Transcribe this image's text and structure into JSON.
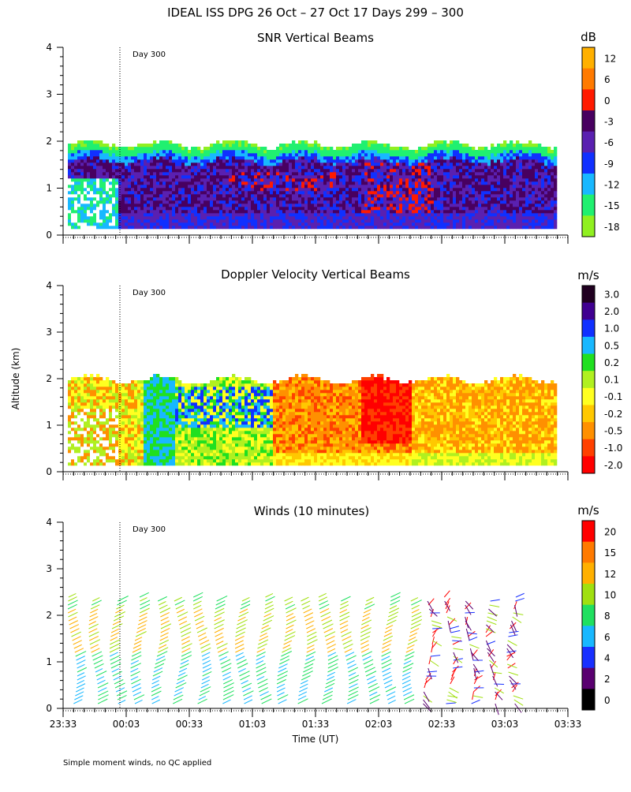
{
  "title": "IDEAL ISS DPG  26 Oct – 27 Oct 17 Days 299 – 300",
  "footnote": "Simple moment winds, no QC applied",
  "day_marker_label": "Day 300",
  "chart_data": {
    "type": "heatmap",
    "x_axis": {
      "label": "Time (UT)",
      "ticks": [
        "23:33",
        "00:03",
        "00:33",
        "01:03",
        "01:33",
        "02:03",
        "02:33",
        "03:03",
        "03:33"
      ],
      "day_boundary_time": "00:00"
    },
    "y_axis": {
      "label": "Altitude (km)",
      "ticks": [
        "0",
        "1",
        "2",
        "3",
        "4"
      ],
      "ylim": [
        0,
        4
      ]
    },
    "panels": [
      {
        "title": "SNR Vertical Beams",
        "type": "heatmap",
        "colorbar_unit": "dB",
        "colorbar_labels": [
          "12",
          "6",
          "0",
          "-3",
          "-6",
          "-9",
          "-12",
          "-15",
          "-18"
        ],
        "colorbar_colors": [
          "#ffb000",
          "#ff7a00",
          "#ff1a00",
          "#480060",
          "#5a20b0",
          "#1030ff",
          "#18b8ff",
          "#20f070",
          "#90f020"
        ],
        "data_top_km": 1.9
      },
      {
        "title": "Doppler Velocity Vertical Beams",
        "type": "heatmap",
        "colorbar_unit": "m/s",
        "colorbar_labels": [
          "3.0",
          "2.0",
          "1.0",
          "0.5",
          "0.2",
          "0.1",
          "-0.1",
          "-0.2",
          "-0.5",
          "-1.0",
          "-2.0"
        ],
        "colorbar_colors": [
          "#200020",
          "#400090",
          "#1030ff",
          "#18b8ff",
          "#20e020",
          "#b0f020",
          "#ffff20",
          "#ffc800",
          "#ff9000",
          "#ff4000",
          "#ff0000"
        ],
        "data_top_km": 1.95
      },
      {
        "title": "Winds (10 minutes)",
        "type": "wind_barbs",
        "colorbar_unit": "m/s",
        "colorbar_labels": [
          "20",
          "15",
          "12",
          "10",
          "8",
          "6",
          "4",
          "2",
          "0"
        ],
        "colorbar_colors": [
          "#ff0000",
          "#ff7a00",
          "#ffb000",
          "#a0e010",
          "#20e060",
          "#18b8ff",
          "#1830ff",
          "#5a0070",
          "#000000"
        ],
        "profile_top_km": 2.4,
        "profile_count": 22
      }
    ]
  }
}
